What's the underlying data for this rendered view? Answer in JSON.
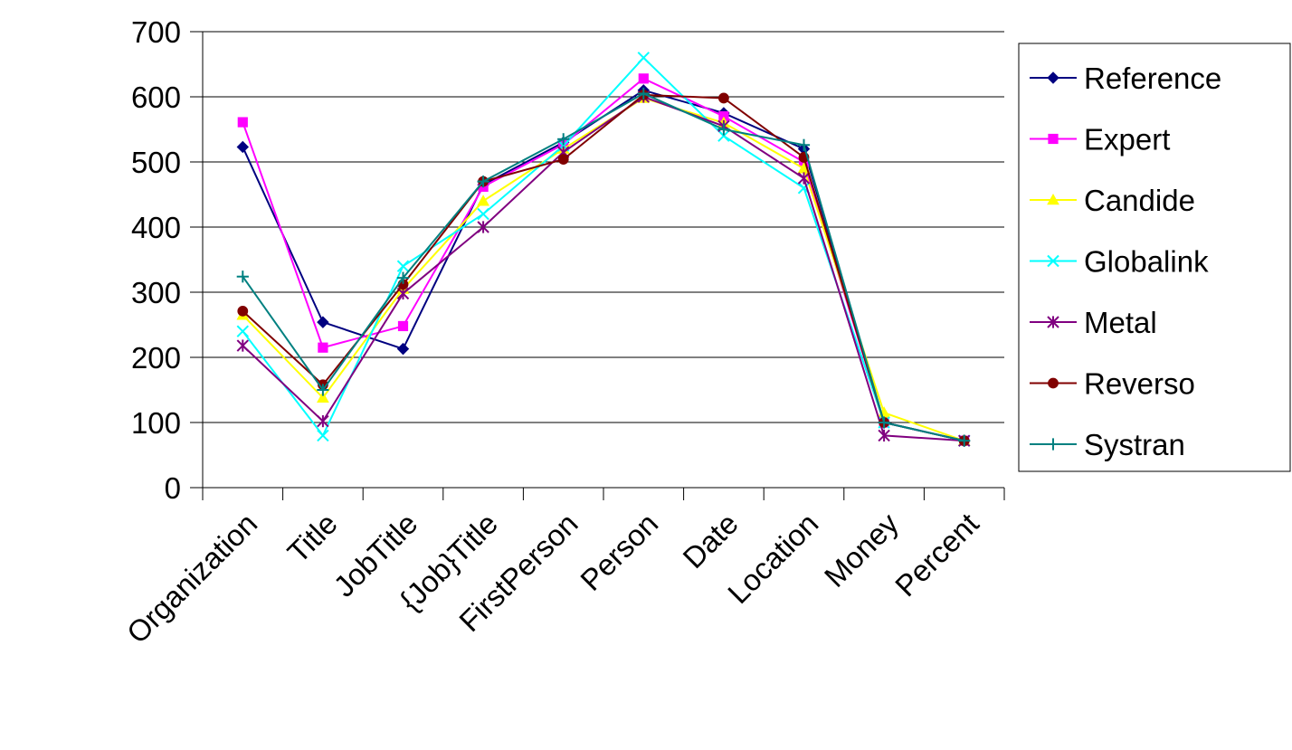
{
  "chart_data": {
    "type": "line",
    "title": "",
    "xlabel": "",
    "ylabel": "",
    "categories": [
      "Organization",
      "Title",
      "JobTitle",
      "{Job}Title",
      "FirstPerson",
      "Person",
      "Date",
      "Location",
      "Money",
      "Percent"
    ],
    "ylim": [
      0,
      700
    ],
    "yticks": [
      0,
      100,
      200,
      300,
      400,
      500,
      600,
      700
    ],
    "grid": "horizontal",
    "legend_position": "right",
    "series": [
      {
        "name": "Reference",
        "color": "#000080",
        "marker": "diamond",
        "values": [
          523,
          254,
          213,
          465,
          530,
          610,
          575,
          520,
          100,
          72
        ]
      },
      {
        "name": "Expert",
        "color": "#FF00FF",
        "marker": "square",
        "values": [
          561,
          215,
          248,
          462,
          527,
          628,
          570,
          500,
          100,
          72
        ]
      },
      {
        "name": "Candide",
        "color": "#FFFF00",
        "marker": "triangle",
        "values": [
          265,
          138,
          305,
          440,
          520,
          598,
          560,
          490,
          115,
          72
        ]
      },
      {
        "name": "Globalink",
        "color": "#00FFFF",
        "marker": "x",
        "values": [
          240,
          80,
          340,
          420,
          525,
          660,
          540,
          460,
          100,
          72
        ]
      },
      {
        "name": "Metal",
        "color": "#800080",
        "marker": "star",
        "values": [
          218,
          102,
          298,
          400,
          515,
          600,
          555,
          475,
          80,
          72
        ]
      },
      {
        "name": "Reverso",
        "color": "#800000",
        "marker": "circle",
        "values": [
          271,
          158,
          312,
          470,
          504,
          603,
          598,
          507,
          100,
          72
        ]
      },
      {
        "name": "Systran",
        "color": "#008080",
        "marker": "plus",
        "values": [
          324,
          150,
          322,
          470,
          535,
          605,
          550,
          526,
          100,
          72
        ]
      }
    ]
  }
}
